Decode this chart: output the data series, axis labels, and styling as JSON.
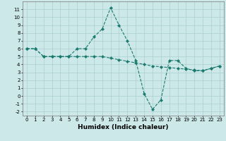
{
  "title": "",
  "xlabel": "Humidex (Indice chaleur)",
  "x": [
    0,
    1,
    2,
    3,
    4,
    5,
    6,
    7,
    8,
    9,
    10,
    11,
    12,
    13,
    14,
    15,
    16,
    17,
    18,
    19,
    20,
    21,
    22,
    23
  ],
  "curve1": [
    6.0,
    6.0,
    5.0,
    5.0,
    5.0,
    5.0,
    6.0,
    6.0,
    7.5,
    8.5,
    11.2,
    9.0,
    7.0,
    4.5,
    0.3,
    -1.7,
    -0.5,
    4.5,
    4.5,
    3.5,
    3.2,
    3.2,
    3.5,
    3.8
  ],
  "curve2": [
    6.0,
    6.0,
    5.0,
    5.0,
    5.0,
    5.0,
    5.0,
    5.0,
    5.0,
    5.0,
    4.8,
    4.6,
    4.4,
    4.2,
    4.0,
    3.8,
    3.7,
    3.6,
    3.5,
    3.4,
    3.3,
    3.2,
    3.5,
    3.8
  ],
  "color": "#1a7a6e",
  "bg_color": "#cce8e8",
  "grid_color": "#aacfcf",
  "ylim": [
    -2.5,
    12.0
  ],
  "xlim": [
    -0.5,
    23.5
  ],
  "yticks": [
    -2,
    -1,
    0,
    1,
    2,
    3,
    4,
    5,
    6,
    7,
    8,
    9,
    10,
    11
  ],
  "xticks": [
    0,
    1,
    2,
    3,
    4,
    5,
    6,
    7,
    8,
    9,
    10,
    11,
    12,
    13,
    14,
    15,
    16,
    17,
    18,
    19,
    20,
    21,
    22,
    23
  ],
  "tick_fontsize": 5.0,
  "xlabel_fontsize": 6.5,
  "linewidth": 0.8,
  "markersize": 2.2
}
